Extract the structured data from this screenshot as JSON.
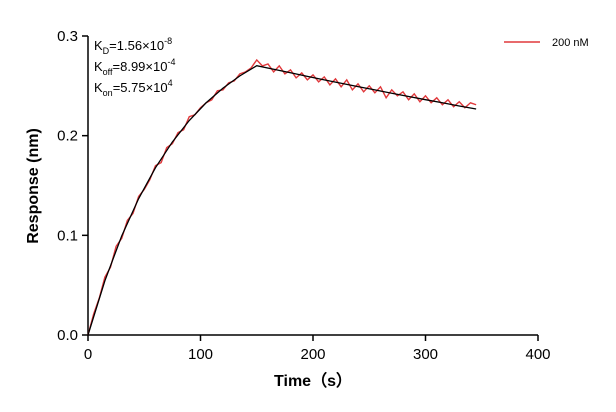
{
  "chart_data": {
    "type": "line",
    "x_label": "Time（s）",
    "y_label": "Response (nm)",
    "xlim": [
      0,
      400
    ],
    "xticks": [
      0,
      100,
      200,
      300,
      400
    ],
    "ylim": [
      0,
      0.3
    ],
    "yticks": [
      {
        "value": 0,
        "label": "0.0"
      },
      0.1,
      0.2,
      0.3
    ],
    "legend": "top-right",
    "annotations": [
      [
        "K",
        "D",
        "=1.56×10",
        "-8"
      ],
      [
        "K",
        "off",
        "=8.99×10",
        "-4"
      ],
      [
        "K",
        "on",
        "=5.75×10",
        "4"
      ]
    ],
    "series": [
      {
        "name": "200 nM",
        "color": "#e0383b",
        "x": [
          0,
          5,
          10,
          15,
          20,
          25,
          30,
          35,
          40,
          45,
          50,
          55,
          60,
          65,
          70,
          75,
          80,
          85,
          90,
          95,
          100,
          105,
          110,
          115,
          120,
          125,
          130,
          135,
          140,
          145,
          150,
          155,
          160,
          165,
          170,
          175,
          180,
          185,
          190,
          195,
          200,
          205,
          210,
          215,
          220,
          225,
          230,
          235,
          240,
          245,
          250,
          255,
          260,
          265,
          270,
          275,
          280,
          285,
          290,
          295,
          300,
          305,
          310,
          315,
          320,
          325,
          330,
          335,
          340,
          345
        ],
        "values": [
          0.0,
          0.021,
          0.037,
          0.058,
          0.068,
          0.089,
          0.097,
          0.115,
          0.122,
          0.139,
          0.146,
          0.156,
          0.17,
          0.173,
          0.188,
          0.192,
          0.203,
          0.206,
          0.219,
          0.221,
          0.228,
          0.233,
          0.236,
          0.245,
          0.246,
          0.253,
          0.255,
          0.262,
          0.264,
          0.268,
          0.276,
          0.27,
          0.272,
          0.264,
          0.27,
          0.262,
          0.266,
          0.258,
          0.263,
          0.256,
          0.261,
          0.254,
          0.259,
          0.251,
          0.257,
          0.249,
          0.256,
          0.246,
          0.252,
          0.244,
          0.25,
          0.243,
          0.249,
          0.238,
          0.246,
          0.24,
          0.244,
          0.236,
          0.242,
          0.234,
          0.24,
          0.233,
          0.238,
          0.231,
          0.236,
          0.229,
          0.234,
          0.228,
          0.233,
          0.231
        ]
      }
    ],
    "fit": {
      "color": "#000000",
      "x": [
        0,
        15,
        30,
        45,
        60,
        75,
        90,
        105,
        120,
        135,
        150,
        165,
        180,
        195,
        210,
        225,
        240,
        255,
        270,
        285,
        300,
        315,
        330,
        345
      ],
      "values": [
        0,
        0.0544,
        0.0995,
        0.1368,
        0.1679,
        0.1937,
        0.2152,
        0.233,
        0.2477,
        0.26,
        0.2702,
        0.2666,
        0.2631,
        0.2595,
        0.256,
        0.2526,
        0.2492,
        0.2459,
        0.2426,
        0.2393,
        0.2361,
        0.233,
        0.2298,
        0.2268
      ]
    }
  }
}
